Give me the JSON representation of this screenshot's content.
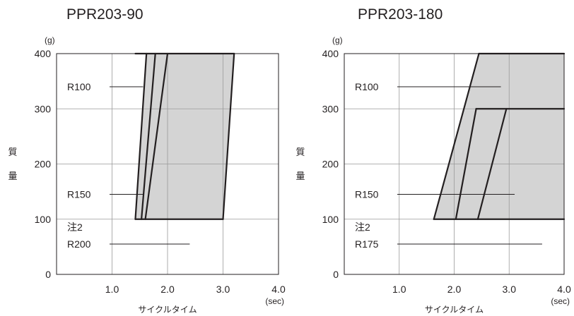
{
  "chart_data": [
    {
      "type": "area",
      "title": "PPR203-90",
      "xlabel": "サイクルタイム",
      "ylabel": "質量",
      "x_unit": "(sec)",
      "y_unit": "(g)",
      "xlim": [
        0,
        4.0
      ],
      "ylim": [
        0,
        400
      ],
      "x_ticks": [
        "1.0",
        "2.0",
        "3.0",
        "4.0"
      ],
      "y_ticks": [
        "0",
        "100",
        "200",
        "300",
        "400"
      ],
      "grid": true,
      "regions": [
        {
          "polygon": [
            [
              1.42,
              100
            ],
            [
              1.62,
              400
            ],
            [
              3.2,
              400
            ],
            [
              3.0,
              100
            ]
          ]
        }
      ],
      "boundaries": [
        {
          "points": [
            [
              1.42,
              100
            ],
            [
              1.62,
              400
            ]
          ]
        },
        {
          "points": [
            [
              1.53,
              100
            ],
            [
              1.78,
              400
            ]
          ]
        },
        {
          "points": [
            [
              1.6,
              100
            ],
            [
              2.0,
              400
            ]
          ]
        },
        {
          "points": [
            [
              3.0,
              100
            ],
            [
              3.2,
              400
            ]
          ]
        },
        {
          "points": [
            [
              1.42,
              400
            ],
            [
              3.2,
              400
            ]
          ]
        },
        {
          "points": [
            [
              1.42,
              100
            ],
            [
              3.0,
              100
            ]
          ]
        }
      ],
      "annotations": [
        {
          "lines": [
            "R100"
          ],
          "y": 340,
          "leader": [
            1.0,
            1.56
          ]
        },
        {
          "lines": [
            "R150"
          ],
          "y": 145,
          "leader": [
            0.78,
            1.57
          ]
        },
        {
          "lines": [
            "注2",
            "R200"
          ],
          "y": 55,
          "leader": [
            0.4,
            2.4
          ]
        }
      ]
    },
    {
      "type": "area",
      "title": "PPR203-180",
      "xlabel": "サイクルタイム",
      "ylabel": "質量",
      "x_unit": "(sec)",
      "y_unit": "(g)",
      "xlim": [
        0,
        4.0
      ],
      "ylim": [
        0,
        400
      ],
      "x_ticks": [
        "1.0",
        "2.0",
        "3.0",
        "4.0"
      ],
      "y_ticks": [
        "0",
        "100",
        "200",
        "300",
        "400"
      ],
      "grid": true,
      "regions": [
        {
          "polygon": [
            [
              1.63,
              100
            ],
            [
              2.45,
              400
            ],
            [
              4.0,
              400
            ],
            [
              4.0,
              100
            ]
          ]
        }
      ],
      "boundaries": [
        {
          "points": [
            [
              1.63,
              100
            ],
            [
              2.45,
              400
            ]
          ]
        },
        {
          "points": [
            [
              2.45,
              400
            ],
            [
              4.0,
              400
            ]
          ]
        },
        {
          "points": [
            [
              2.03,
              100
            ],
            [
              2.4,
              300
            ]
          ]
        },
        {
          "points": [
            [
              2.4,
              300
            ],
            [
              4.0,
              300
            ]
          ]
        },
        {
          "points": [
            [
              2.43,
              100
            ],
            [
              2.95,
              300
            ]
          ]
        },
        {
          "points": [
            [
              1.63,
              100
            ],
            [
              4.0,
              100
            ]
          ]
        }
      ],
      "annotations": [
        {
          "lines": [
            "R100"
          ],
          "y": 340,
          "leader": [
            0.02,
            2.85
          ]
        },
        {
          "lines": [
            "R150"
          ],
          "y": 145,
          "leader": [
            0.0,
            3.1
          ]
        },
        {
          "lines": [
            "注2",
            "R175"
          ],
          "y": 55,
          "leader": [
            0.0,
            3.6
          ]
        }
      ]
    }
  ]
}
